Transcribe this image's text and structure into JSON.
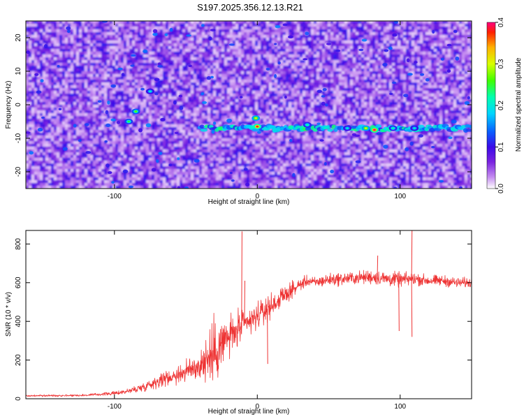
{
  "chart_data": [
    {
      "type": "heatmap",
      "title": "S197.2025.356.12.13.R21",
      "xlabel": "Height of straight line (km)",
      "ylabel": "Frequency (Hz)",
      "xlim": [
        -162,
        150
      ],
      "ylim": [
        -25,
        25
      ],
      "x_ticks": [
        -100,
        0,
        100
      ],
      "y_ticks": [
        20,
        10,
        0,
        -10,
        -20
      ],
      "colorbar": {
        "label": "Normalized spectral amplitude",
        "range": [
          0.0,
          0.4
        ],
        "ticks": [
          "0.0",
          "0.1",
          "0.2",
          "0.3",
          "0.4"
        ],
        "colormap": [
          "#ffffff",
          "#c48bf0",
          "#7a22e0",
          "#3a0ae8",
          "#0a5cff",
          "#00d4ff",
          "#00ffb0",
          "#40ff00",
          "#d8ff00",
          "#ffb000",
          "#ff2000",
          "#ff0080"
        ]
      },
      "feature": {
        "description": "Horizontal band of elevated amplitude near -7 Hz",
        "band_frequency": -7,
        "band_x_range": [
          -40,
          150
        ],
        "hotspots": [
          {
            "x": 0,
            "y": -6.5,
            "amplitude": 0.38
          },
          {
            "x": -1,
            "y": -4,
            "amplitude": 0.3
          },
          {
            "x": 82,
            "y": -7.5,
            "amplitude": 0.4
          },
          {
            "x": 76,
            "y": -7,
            "amplitude": 0.3
          },
          {
            "x": 95,
            "y": -7,
            "amplitude": 0.22
          },
          {
            "x": 110,
            "y": -7,
            "amplitude": 0.2
          },
          {
            "x": -85,
            "y": -2,
            "amplitude": 0.26
          },
          {
            "x": -90,
            "y": -5,
            "amplitude": 0.24
          },
          {
            "x": -75,
            "y": 4,
            "amplitude": 0.2
          },
          {
            "x": 35,
            "y": -6,
            "amplitude": 0.22
          },
          {
            "x": 63,
            "y": -7,
            "amplitude": 0.2
          }
        ]
      }
    },
    {
      "type": "line",
      "xlabel": "Height of straight line (km)",
      "ylabel": "SNR (10 * v/v)",
      "xlim": [
        -162,
        150
      ],
      "ylim": [
        0,
        870
      ],
      "x_ticks": [
        -100,
        0,
        100
      ],
      "y_ticks": [
        0,
        200,
        400,
        600,
        800
      ],
      "color": "#ee3333",
      "envelope": {
        "x": [
          -162,
          -120,
          -100,
          -90,
          -80,
          -70,
          -60,
          -50,
          -40,
          -35,
          -30,
          -25,
          -20,
          -15,
          -10,
          -5,
          0,
          5,
          10,
          15,
          20,
          25,
          30,
          35,
          40,
          50,
          60,
          70,
          80,
          90,
          100,
          110,
          120,
          130,
          140,
          150
        ],
        "y": [
          15,
          18,
          28,
          40,
          60,
          90,
          115,
          140,
          175,
          205,
          240,
          280,
          320,
          345,
          375,
          400,
          425,
          455,
          480,
          510,
          540,
          565,
          590,
          610,
          600,
          615,
          620,
          625,
          630,
          620,
          615,
          620,
          610,
          610,
          600,
          600
        ],
        "noise_amplitude": [
          5,
          6,
          10,
          15,
          25,
          35,
          45,
          60,
          90,
          140,
          170,
          150,
          130,
          100,
          90,
          80,
          70,
          70,
          65,
          55,
          45,
          40,
          35,
          30,
          30,
          35,
          35,
          35,
          40,
          40,
          40,
          35,
          30,
          30,
          28,
          28
        ]
      },
      "spikes": [
        {
          "x": -11,
          "y": 865
        },
        {
          "x": -9,
          "y": 610
        },
        {
          "x": 108,
          "y": 870
        },
        {
          "x": 108,
          "y": 320
        },
        {
          "x": 99,
          "y": 350
        },
        {
          "x": 7,
          "y": 180
        },
        {
          "x": 84,
          "y": 740
        },
        {
          "x": -26,
          "y": 360
        }
      ]
    }
  ]
}
